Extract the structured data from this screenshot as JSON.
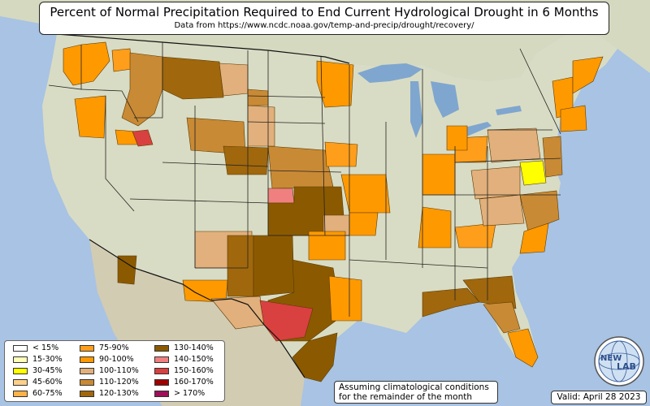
{
  "title": "Percent of Normal Precipitation Required to End Current Hydrological Drought in 6 Months",
  "subtitle": "Data from https://www.ncdc.noaa.gov/temp-and-precip/drought/recovery/",
  "legend": {
    "items": [
      {
        "label": "< 15%",
        "color": "#ffffff"
      },
      {
        "label": "15-30%",
        "color": "#ffffb8"
      },
      {
        "label": "30-45%",
        "color": "#ffff00"
      },
      {
        "label": "45-60%",
        "color": "#fdd08a"
      },
      {
        "label": "60-75%",
        "color": "#ffb347"
      },
      {
        "label": "75-90%",
        "color": "#ff9e1a"
      },
      {
        "label": "90-100%",
        "color": "#ff9900"
      },
      {
        "label": "100-110%",
        "color": "#e1b07c"
      },
      {
        "label": "110-120%",
        "color": "#c98a35"
      },
      {
        "label": "120-130%",
        "color": "#a0670d"
      },
      {
        "label": "130-140%",
        "color": "#8b5a00"
      },
      {
        "label": "140-150%",
        "color": "#f08080"
      },
      {
        "label": "150-160%",
        "color": "#d94040"
      },
      {
        "label": "160-170%",
        "color": "#a00000"
      },
      {
        "label": "> 170%",
        "color": "#a0105a"
      }
    ]
  },
  "note": {
    "line1": "Assuming climatological conditions",
    "line2": "for the remainder of the month"
  },
  "valid": "Valid: April 28 2023",
  "logo": {
    "text1": "NEW",
    "text2": "LAB",
    "icon": "globe-logo-icon"
  },
  "colors": {
    "ocean": "#a8c3e3",
    "land": "#d9dcc4",
    "lakes": "#7fa6cf"
  }
}
